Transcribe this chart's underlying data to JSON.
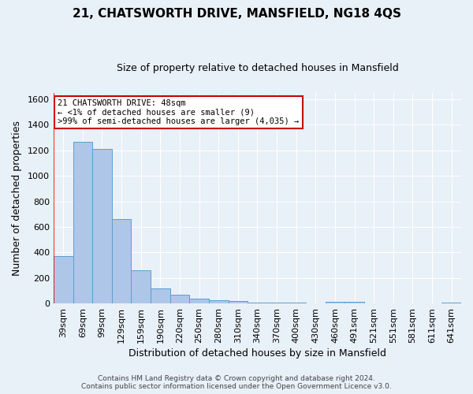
{
  "title": "21, CHATSWORTH DRIVE, MANSFIELD, NG18 4QS",
  "subtitle": "Size of property relative to detached houses in Mansfield",
  "xlabel": "Distribution of detached houses by size in Mansfield",
  "ylabel": "Number of detached properties",
  "footer_line1": "Contains HM Land Registry data © Crown copyright and database right 2024.",
  "footer_line2": "Contains public sector information licensed under the Open Government Licence v3.0.",
  "categories": [
    "39sqm",
    "69sqm",
    "99sqm",
    "129sqm",
    "159sqm",
    "190sqm",
    "220sqm",
    "250sqm",
    "280sqm",
    "310sqm",
    "340sqm",
    "370sqm",
    "400sqm",
    "430sqm",
    "460sqm",
    "491sqm",
    "521sqm",
    "551sqm",
    "581sqm",
    "611sqm",
    "641sqm"
  ],
  "values": [
    370,
    1265,
    1210,
    660,
    260,
    120,
    70,
    38,
    25,
    18,
    10,
    8,
    6,
    0,
    15,
    15,
    0,
    0,
    0,
    0,
    5
  ],
  "bar_color": "#aec6e8",
  "bar_edge_color": "#5a9fd4",
  "ylim": [
    0,
    1650
  ],
  "yticks": [
    0,
    200,
    400,
    600,
    800,
    1000,
    1200,
    1400,
    1600
  ],
  "annotation_line1": "21 CHATSWORTH DRIVE: 48sqm",
  "annotation_line2": "← <1% of detached houses are smaller (9)",
  "annotation_line3": ">99% of semi-detached houses are larger (4,035) →",
  "annotation_box_color": "#ffffff",
  "annotation_box_edge": "#cc0000",
  "background_color": "#e8f0f8",
  "grid_color": "#ffffff",
  "title_fontsize": 11,
  "subtitle_fontsize": 9,
  "axis_label_fontsize": 9,
  "tick_fontsize": 8,
  "footer_fontsize": 6.5
}
